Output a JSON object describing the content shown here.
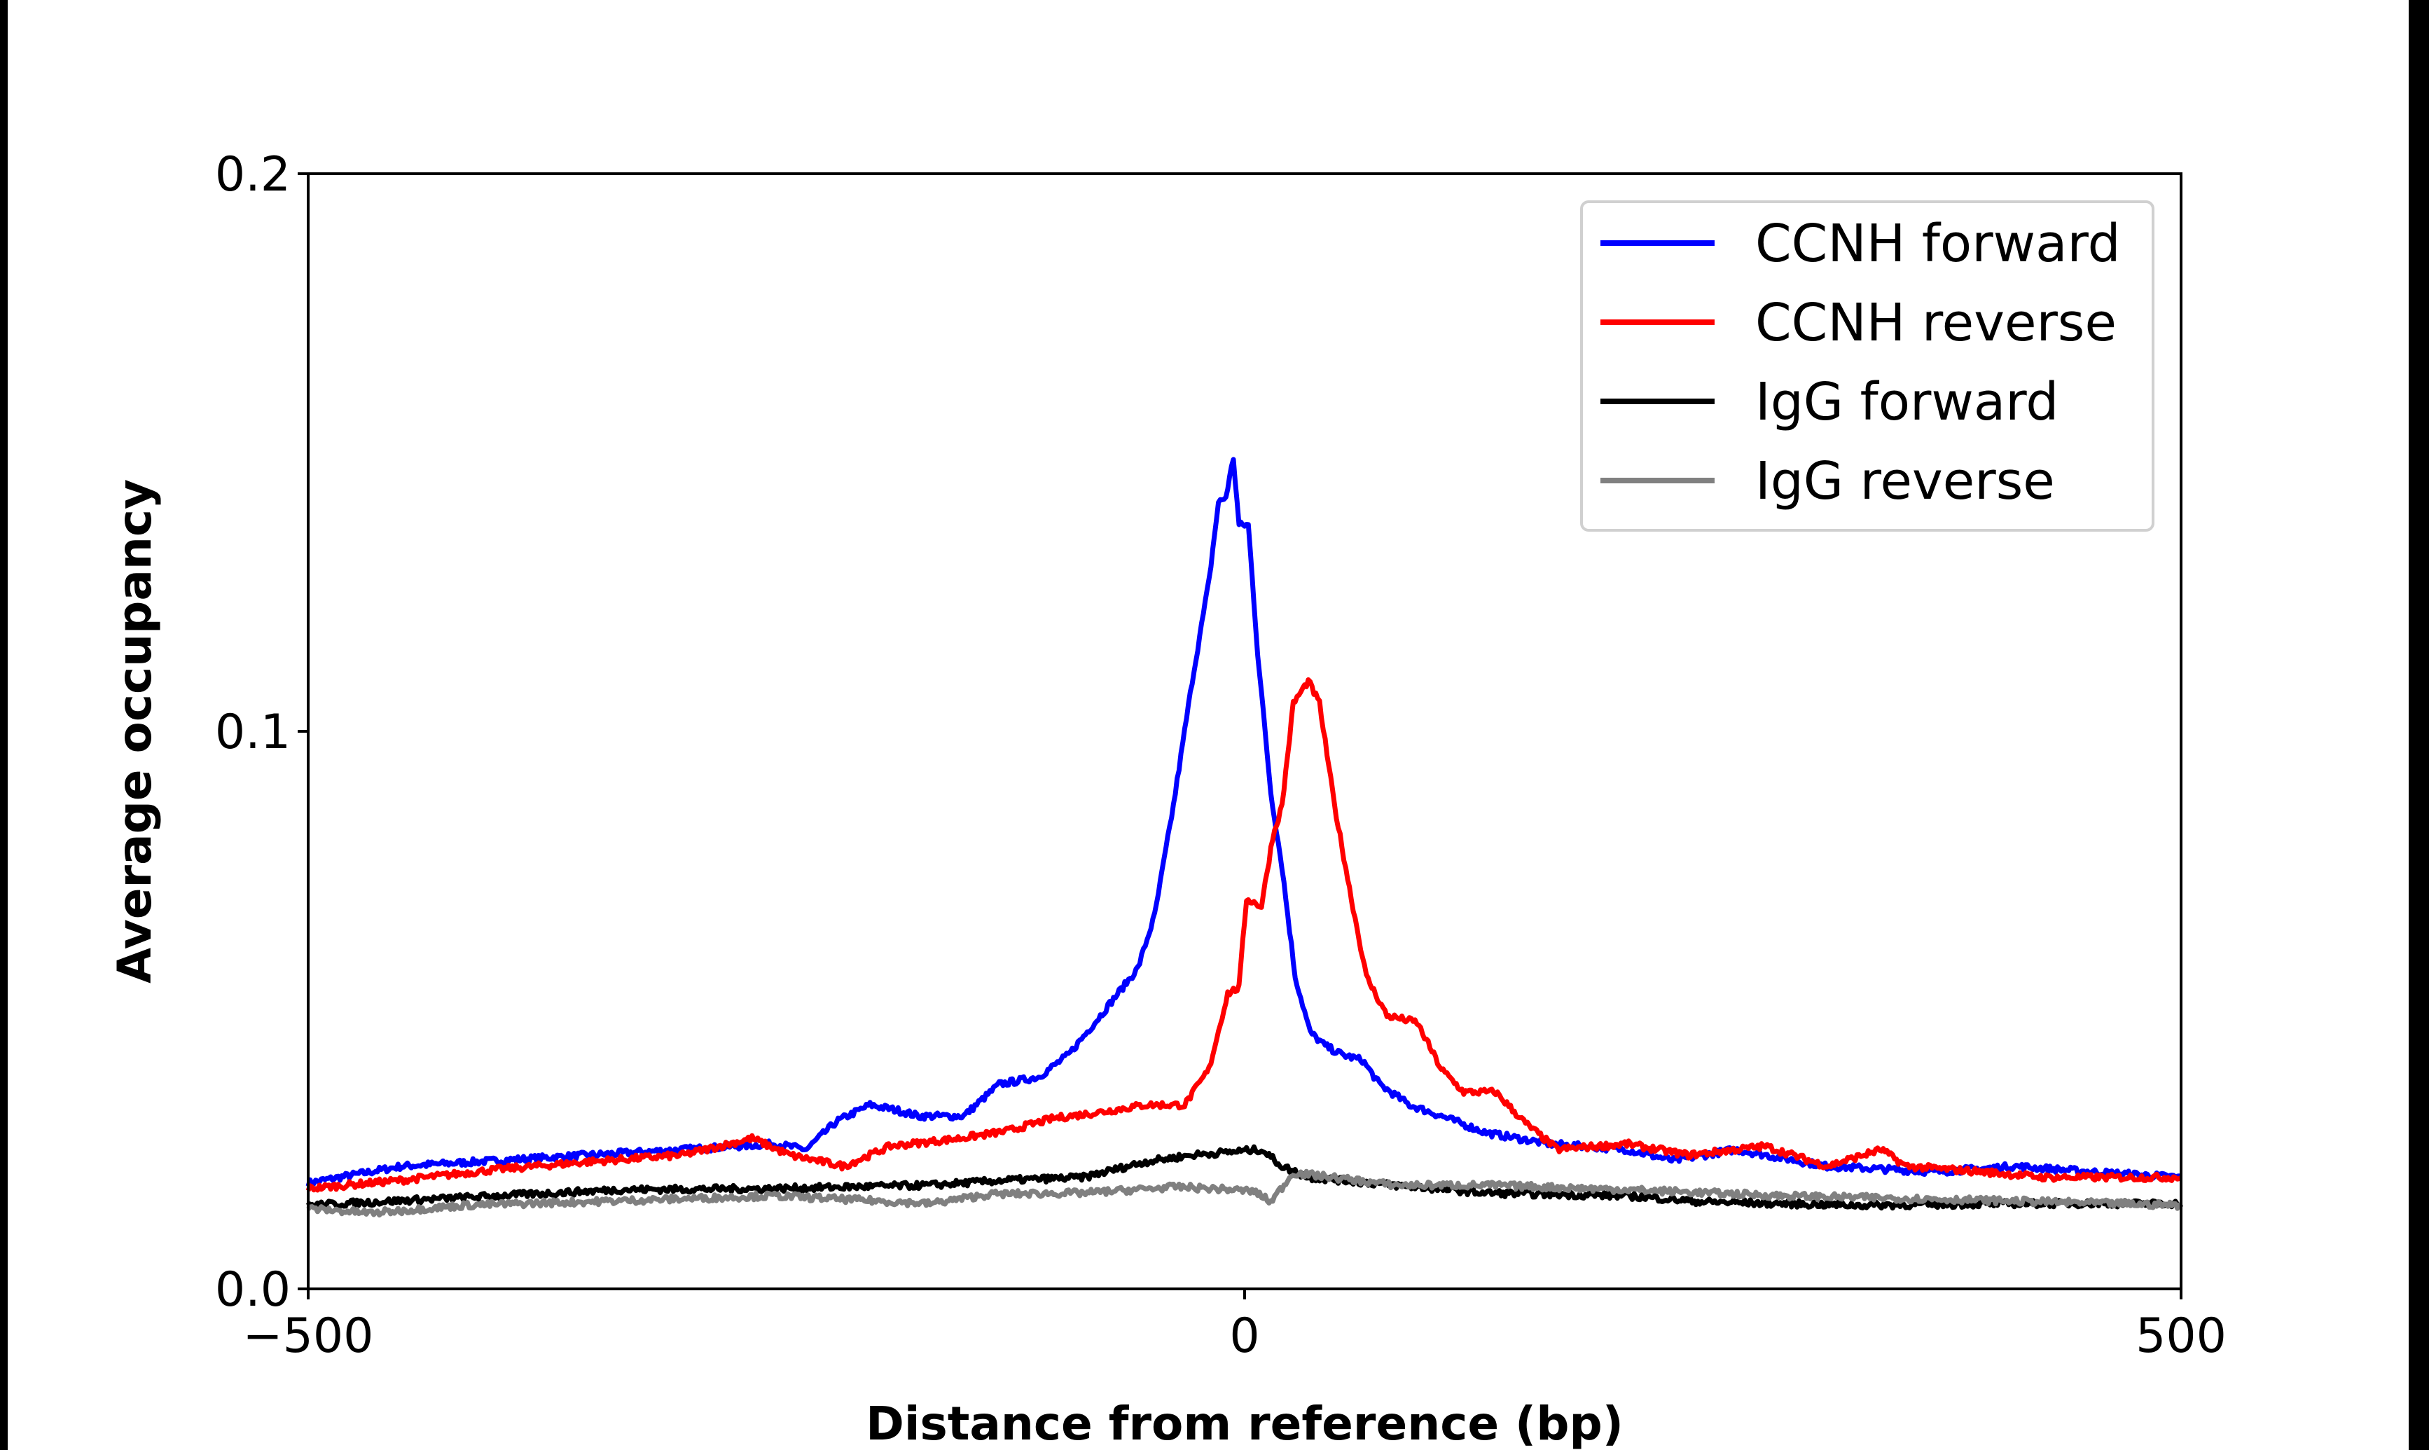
{
  "chart_data": {
    "type": "line",
    "title": "",
    "xlabel": "Distance from reference (bp)",
    "ylabel": "Average occupancy",
    "xlim": [
      -500,
      500
    ],
    "ylim": [
      0.0,
      0.2
    ],
    "xticks": [
      -500,
      0,
      500
    ],
    "xtick_labels": [
      "−500",
      "0",
      "500"
    ],
    "yticks": [
      0.0,
      0.1,
      0.2
    ],
    "ytick_labels": [
      "0.0",
      "0.1",
      "0.2"
    ],
    "grid": false,
    "legend_position": "top-right",
    "series": [
      {
        "name": "CCNH forward",
        "color": "#0000ff",
        "x": [
          -500,
          -450,
          -400,
          -350,
          -300,
          -251,
          -234,
          -218,
          -200,
          -185,
          -174,
          -150,
          -131,
          -110,
          -94,
          -77,
          -57,
          -48,
          -38,
          -28,
          -19,
          -14,
          -10,
          -6,
          -3,
          2,
          7,
          14,
          20,
          27,
          35,
          43,
          52,
          63,
          72,
          88,
          105,
          129,
          163,
          204,
          229,
          262,
          311,
          369,
          411,
          452,
          500
        ],
        "y": [
          0.019,
          0.022,
          0.023,
          0.024,
          0.025,
          0.026,
          0.025,
          0.03,
          0.033,
          0.032,
          0.031,
          0.031,
          0.0367,
          0.038,
          0.042,
          0.049,
          0.0575,
          0.067,
          0.0867,
          0.109,
          0.127,
          0.141,
          0.142,
          0.149,
          0.137,
          0.137,
          0.114,
          0.089,
          0.0756,
          0.056,
          0.046,
          0.0436,
          0.042,
          0.041,
          0.0367,
          0.033,
          0.031,
          0.028,
          0.026,
          0.025,
          0.023,
          0.025,
          0.022,
          0.021,
          0.022,
          0.021,
          0.02
        ]
      },
      {
        "name": "CCNH reverse",
        "color": "#ff0000",
        "x": [
          -500,
          -450,
          -400,
          -350,
          -300,
          -263,
          -243,
          -214,
          -189,
          -152,
          -127,
          -102,
          -77,
          -53,
          -32,
          -19,
          -9,
          -3,
          1,
          9,
          15,
          20,
          26,
          34,
          40,
          48,
          57,
          65,
          76,
          92,
          105,
          117,
          134,
          150,
          167,
          204,
          237,
          278,
          311,
          340,
          353,
          394,
          427,
          469,
          500
        ],
        "y": [
          0.018,
          0.0195,
          0.0214,
          0.0228,
          0.024,
          0.027,
          0.024,
          0.022,
          0.0256,
          0.027,
          0.0283,
          0.0306,
          0.0317,
          0.033,
          0.033,
          0.0394,
          0.053,
          0.054,
          0.07,
          0.0686,
          0.081,
          0.0867,
          0.105,
          0.109,
          0.105,
          0.0867,
          0.07,
          0.056,
          0.049,
          0.0478,
          0.0394,
          0.0353,
          0.0353,
          0.0297,
          0.025,
          0.026,
          0.024,
          0.0256,
          0.022,
          0.025,
          0.022,
          0.021,
          0.02,
          0.02,
          0.02
        ]
      },
      {
        "name": "IgG forward",
        "color": "#000000",
        "x": [
          -500,
          -416,
          -334,
          -251,
          -168,
          -127,
          -86,
          -53,
          -28,
          -3,
          9,
          20,
          34,
          80,
          129,
          204,
          245,
          328,
          411,
          500
        ],
        "y": [
          0.015,
          0.0164,
          0.0178,
          0.018,
          0.0186,
          0.0195,
          0.02,
          0.0228,
          0.024,
          0.0247,
          0.025,
          0.022,
          0.02,
          0.0186,
          0.0172,
          0.0167,
          0.0156,
          0.015,
          0.0153,
          0.0153
        ]
      },
      {
        "name": "IgG reverse",
        "color": "#808080",
        "x": [
          -500,
          -466,
          -416,
          -334,
          -251,
          -168,
          -135,
          -86,
          -36,
          -7,
          5,
          14,
          26,
          47,
          80,
          129,
          204,
          287,
          369,
          500
        ],
        "y": [
          0.0144,
          0.0136,
          0.015,
          0.0158,
          0.0167,
          0.0153,
          0.017,
          0.0172,
          0.0183,
          0.0178,
          0.0175,
          0.0156,
          0.0208,
          0.02,
          0.0186,
          0.0186,
          0.0178,
          0.0167,
          0.0161,
          0.015
        ]
      }
    ]
  }
}
